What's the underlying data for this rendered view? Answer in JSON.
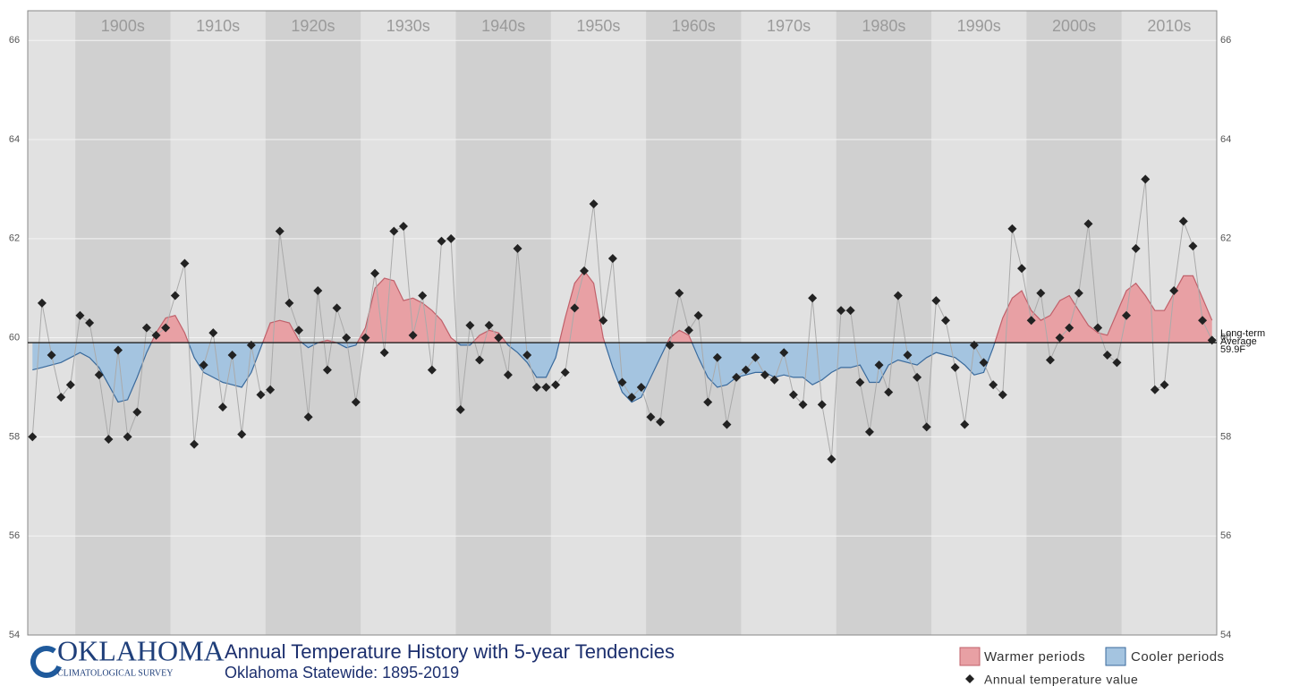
{
  "chart_data": {
    "type": "line",
    "title": "Annual Temperature History with 5-year Tendencies",
    "subtitle": "Oklahoma Statewide: 1895-2019",
    "logo": {
      "name": "OKLAHOMA",
      "sub": "CLIMATOLOGICAL SURVEY"
    },
    "x": [
      1895,
      1896,
      1897,
      1898,
      1899,
      1900,
      1901,
      1902,
      1903,
      1904,
      1905,
      1906,
      1907,
      1908,
      1909,
      1910,
      1911,
      1912,
      1913,
      1914,
      1915,
      1916,
      1917,
      1918,
      1919,
      1920,
      1921,
      1922,
      1923,
      1924,
      1925,
      1926,
      1927,
      1928,
      1929,
      1930,
      1931,
      1932,
      1933,
      1934,
      1935,
      1936,
      1937,
      1938,
      1939,
      1940,
      1941,
      1942,
      1943,
      1944,
      1945,
      1946,
      1947,
      1948,
      1949,
      1950,
      1951,
      1952,
      1953,
      1954,
      1955,
      1956,
      1957,
      1958,
      1959,
      1960,
      1961,
      1962,
      1963,
      1964,
      1965,
      1966,
      1967,
      1968,
      1969,
      1970,
      1971,
      1972,
      1973,
      1974,
      1975,
      1976,
      1977,
      1978,
      1979,
      1980,
      1981,
      1982,
      1983,
      1984,
      1985,
      1986,
      1987,
      1988,
      1989,
      1990,
      1991,
      1992,
      1993,
      1994,
      1995,
      1996,
      1997,
      1998,
      1999,
      2000,
      2001,
      2002,
      2003,
      2004,
      2005,
      2006,
      2007,
      2008,
      2009,
      2010,
      2011,
      2012,
      2013,
      2014,
      2015,
      2016,
      2017,
      2018,
      2019
    ],
    "series": [
      {
        "name": "Annual temperature value",
        "color": "#222222",
        "values": [
          58.0,
          60.7,
          59.65,
          58.8,
          59.05,
          60.45,
          60.3,
          59.25,
          57.95,
          59.75,
          58.0,
          58.5,
          60.2,
          60.05,
          60.2,
          60.85,
          61.5,
          57.85,
          59.45,
          60.1,
          58.6,
          59.65,
          58.05,
          59.85,
          58.85,
          58.95,
          62.15,
          60.7,
          60.15,
          58.4,
          60.95,
          59.35,
          60.6,
          60.0,
          58.7,
          60.0,
          61.3,
          59.7,
          62.15,
          62.25,
          60.05,
          60.85,
          59.35,
          61.95,
          62.0,
          58.55,
          60.25,
          59.55,
          60.25,
          60.0,
          59.25,
          61.8,
          59.65,
          59.0,
          59.0,
          59.05,
          59.3,
          60.6,
          61.35,
          62.7,
          60.35,
          61.6,
          59.1,
          58.8,
          59.0,
          58.4,
          58.3,
          59.85,
          60.9,
          60.15,
          60.45,
          58.7,
          59.6,
          58.25,
          59.2,
          59.35,
          59.6,
          59.25,
          59.15,
          59.7,
          58.85,
          58.65,
          60.8,
          58.65,
          57.55,
          60.55,
          60.55,
          59.1,
          58.1,
          59.45,
          58.9,
          60.85,
          59.65,
          59.2,
          58.2,
          60.75,
          60.35,
          59.4,
          58.25,
          59.85,
          59.5,
          59.05,
          58.85,
          62.2,
          61.4,
          60.35,
          60.9,
          59.55,
          60.0,
          60.2,
          60.9,
          62.3,
          60.2,
          59.65,
          59.5,
          60.45,
          61.8,
          63.2,
          58.95,
          59.05,
          60.95,
          62.35,
          61.85,
          60.35,
          59.95
        ]
      },
      {
        "name": "5-year tendency",
        "values": [
          59.35,
          59.4,
          59.45,
          59.5,
          59.6,
          59.7,
          59.6,
          59.4,
          59.05,
          58.7,
          58.75,
          59.2,
          59.7,
          60.1,
          60.4,
          60.45,
          60.1,
          59.6,
          59.3,
          59.2,
          59.1,
          59.05,
          59.0,
          59.3,
          59.8,
          60.3,
          60.35,
          60.3,
          59.95,
          59.8,
          59.9,
          59.95,
          59.9,
          59.8,
          59.85,
          60.2,
          61.0,
          61.2,
          61.15,
          60.75,
          60.8,
          60.7,
          60.55,
          60.35,
          60.0,
          59.85,
          59.85,
          60.05,
          60.15,
          60.1,
          59.85,
          59.7,
          59.5,
          59.2,
          59.2,
          59.6,
          60.4,
          61.1,
          61.35,
          61.1,
          60.0,
          59.4,
          58.9,
          58.7,
          58.8,
          59.2,
          59.6,
          60.0,
          60.15,
          60.05,
          59.6,
          59.2,
          59.0,
          59.05,
          59.2,
          59.25,
          59.3,
          59.3,
          59.2,
          59.25,
          59.2,
          59.2,
          59.05,
          59.15,
          59.3,
          59.4,
          59.4,
          59.45,
          59.1,
          59.1,
          59.45,
          59.55,
          59.5,
          59.45,
          59.6,
          59.7,
          59.65,
          59.6,
          59.45,
          59.25,
          59.3,
          59.8,
          60.4,
          60.8,
          60.95,
          60.55,
          60.35,
          60.45,
          60.75,
          60.85,
          60.55,
          60.25,
          60.1,
          60.05,
          60.5,
          60.95,
          61.1,
          60.85,
          60.55,
          60.55,
          60.9,
          61.25,
          61.25,
          60.8,
          60.35
        ]
      }
    ],
    "warm": {
      "name": "Warmer periods",
      "color": "#e8a0a4",
      "edge": "#c0606a"
    },
    "cool": {
      "name": "Cooler periods",
      "color": "#a4c4e0",
      "edge": "#3a6a9c"
    },
    "average": {
      "value": 59.9,
      "name_lines": [
        "Long-term",
        "Average"
      ],
      "label": "59.9F"
    },
    "xlim": [
      1894.5,
      2019.5
    ],
    "xticks": [
      {
        "value": 1900,
        "label": "1900s"
      },
      {
        "value": 1910,
        "label": "1910s"
      },
      {
        "value": 1920,
        "label": "1920s"
      },
      {
        "value": 1930,
        "label": "1930s"
      },
      {
        "value": 1940,
        "label": "1940s"
      },
      {
        "value": 1950,
        "label": "1950s"
      },
      {
        "value": 1960,
        "label": "1960s"
      },
      {
        "value": 1970,
        "label": "1970s"
      },
      {
        "value": 1980,
        "label": "1980s"
      },
      {
        "value": 1990,
        "label": "1990s"
      },
      {
        "value": 2000,
        "label": "2000s"
      },
      {
        "value": 2010,
        "label": "2010s"
      }
    ],
    "ylim": [
      54,
      66.6
    ],
    "yticks": [
      54,
      56,
      58,
      60,
      62,
      64,
      66
    ],
    "grid": true
  }
}
